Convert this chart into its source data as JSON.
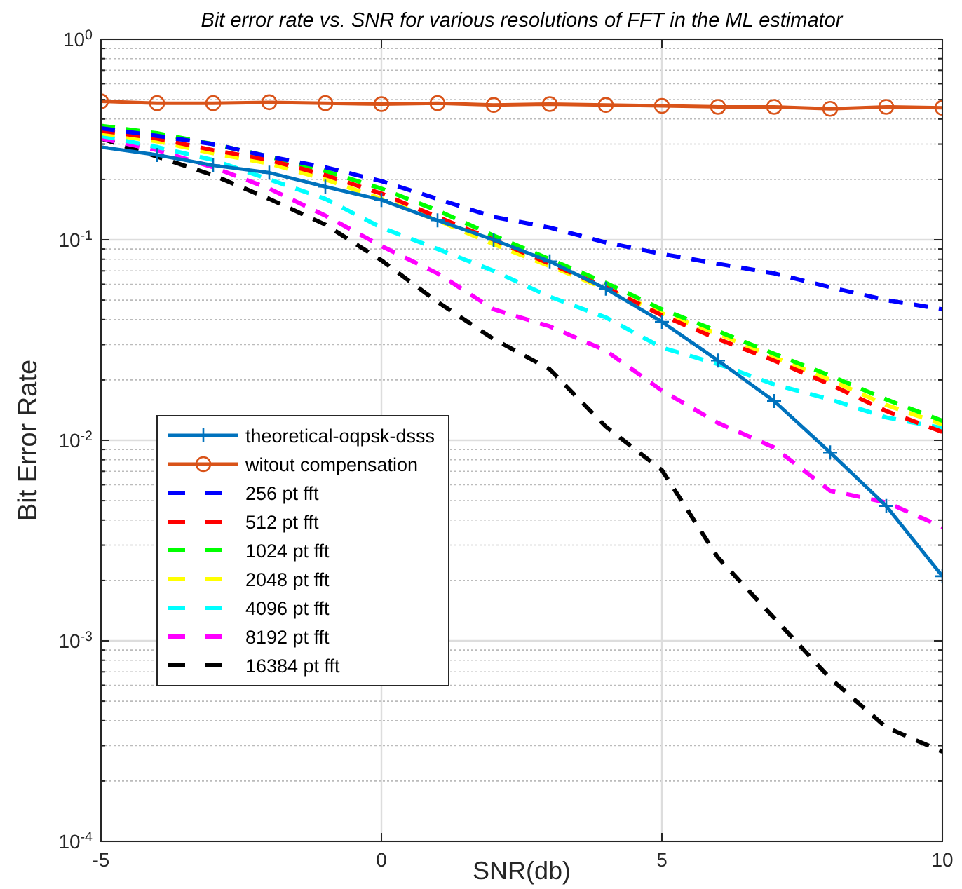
{
  "chart_data": {
    "type": "line",
    "title": "Bit error rate vs. SNR for various resolutions of FFT in the ML estimator",
    "xlabel": "SNR(db)",
    "ylabel": "Bit Error Rate",
    "x": [
      -5,
      -4,
      -3,
      -2,
      -1,
      0,
      1,
      2,
      3,
      4,
      5,
      6,
      7,
      8,
      9,
      10
    ],
    "xlim": [
      -5,
      10
    ],
    "xticks": [
      -5,
      0,
      5,
      10
    ],
    "ylim": [
      0.0001,
      1
    ],
    "log": true,
    "yticks": [
      {
        "value": 0.0001,
        "label": "10$^{-4}$"
      },
      {
        "value": 0.0002,
        "label": null
      },
      {
        "value": 0.0003,
        "label": null
      },
      {
        "value": 0.0004,
        "label": null
      },
      {
        "value": 0.0005,
        "label": null
      },
      {
        "value": 0.0006,
        "label": null
      },
      {
        "value": 0.0007,
        "label": null
      },
      {
        "value": 0.0008,
        "label": null
      },
      {
        "value": 0.0009,
        "label": null
      },
      {
        "value": 0.001,
        "label": "10$^{-3}$"
      },
      {
        "value": 0.002,
        "label": null
      },
      {
        "value": 0.003,
        "label": null
      },
      {
        "value": 0.004,
        "label": null
      },
      {
        "value": 0.005,
        "label": null
      },
      {
        "value": 0.006,
        "label": null
      },
      {
        "value": 0.007,
        "label": null
      },
      {
        "value": 0.008,
        "label": null
      },
      {
        "value": 0.009,
        "label": null
      },
      {
        "value": 0.01,
        "label": "10$^{-2}$"
      },
      {
        "value": 0.02,
        "label": null
      },
      {
        "value": 0.03,
        "label": null
      },
      {
        "value": 0.04,
        "label": null
      },
      {
        "value": 0.05,
        "label": null
      },
      {
        "value": 0.06,
        "label": null
      },
      {
        "value": 0.07,
        "label": null
      },
      {
        "value": 0.08,
        "label": null
      },
      {
        "value": 0.09,
        "label": null
      },
      {
        "value": 0.1,
        "label": "10$^{-1}$"
      },
      {
        "value": 0.2,
        "label": null
      },
      {
        "value": 0.3,
        "label": null
      },
      {
        "value": 0.4,
        "label": null
      },
      {
        "value": 0.5,
        "label": null
      },
      {
        "value": 0.6,
        "label": null
      },
      {
        "value": 0.7,
        "label": null
      },
      {
        "value": 0.8,
        "label": null
      },
      {
        "value": 0.9,
        "label": null
      },
      {
        "value": 1,
        "label": "10$^{0}$"
      }
    ],
    "grid": true,
    "legend": "bottom left",
    "series": [
      {
        "name": "theoretical-oqpsk-dsss",
        "color": "#0072bd",
        "marker": "cross",
        "line_style": "solid",
        "values": [
          0.29,
          0.265,
          0.235,
          0.216,
          0.184,
          0.158,
          0.125,
          0.1,
          0.078,
          0.057,
          0.039,
          0.025,
          0.0157,
          0.0087,
          0.0047,
          0.0021
        ]
      },
      {
        "name": "witout compensation",
        "color": "#d95319",
        "marker": "circle",
        "line_style": "solid",
        "values": [
          0.49,
          0.48,
          0.48,
          0.485,
          0.48,
          0.475,
          0.48,
          0.47,
          0.475,
          0.47,
          0.465,
          0.46,
          0.46,
          0.45,
          0.46,
          0.455
        ]
      },
      {
        "name": "256 pt fft",
        "color": "#0000ff",
        "marker": "none",
        "line_style": "dashed",
        "values": [
          0.36,
          0.33,
          0.3,
          0.26,
          0.23,
          0.196,
          0.16,
          0.13,
          0.115,
          0.097,
          0.085,
          0.076,
          0.068,
          0.058,
          0.05,
          0.045
        ]
      },
      {
        "name": "512 pt fft",
        "color": "#ff0000",
        "marker": "none",
        "line_style": "dashed",
        "values": [
          0.35,
          0.32,
          0.28,
          0.25,
          0.21,
          0.17,
          0.13,
          0.1,
          0.076,
          0.058,
          0.042,
          0.032,
          0.025,
          0.019,
          0.014,
          0.011
        ]
      },
      {
        "name": "1024 pt fft",
        "color": "#00ff00",
        "marker": "none",
        "line_style": "dashed",
        "values": [
          0.37,
          0.34,
          0.3,
          0.26,
          0.22,
          0.18,
          0.14,
          0.105,
          0.08,
          0.061,
          0.045,
          0.035,
          0.027,
          0.021,
          0.016,
          0.0125
        ]
      },
      {
        "name": "2048 pt fft",
        "color": "#ffff00",
        "marker": "none",
        "line_style": "dashed",
        "values": [
          0.34,
          0.31,
          0.27,
          0.24,
          0.2,
          0.16,
          0.125,
          0.095,
          0.074,
          0.057,
          0.043,
          0.034,
          0.026,
          0.02,
          0.015,
          0.012
        ]
      },
      {
        "name": "4096 pt fft",
        "color": "#00ffff",
        "marker": "none",
        "line_style": "dashed",
        "values": [
          0.33,
          0.29,
          0.25,
          0.2,
          0.16,
          0.115,
          0.09,
          0.07,
          0.052,
          0.041,
          0.029,
          0.024,
          0.019,
          0.016,
          0.013,
          0.0115
        ]
      },
      {
        "name": "8192 pt fft",
        "color": "#ff00ff",
        "marker": "none",
        "line_style": "dashed",
        "values": [
          0.32,
          0.28,
          0.23,
          0.18,
          0.132,
          0.093,
          0.068,
          0.045,
          0.037,
          0.028,
          0.0177,
          0.0122,
          0.0092,
          0.0056,
          0.0049,
          0.0037
        ]
      },
      {
        "name": "16384 pt fft",
        "color": "#000000",
        "marker": "none",
        "line_style": "dashed",
        "values": [
          0.32,
          0.26,
          0.21,
          0.16,
          0.119,
          0.079,
          0.049,
          0.032,
          0.0226,
          0.0117,
          0.0071,
          0.0026,
          0.0013,
          0.00065,
          0.00037,
          0.00028
        ]
      }
    ]
  }
}
